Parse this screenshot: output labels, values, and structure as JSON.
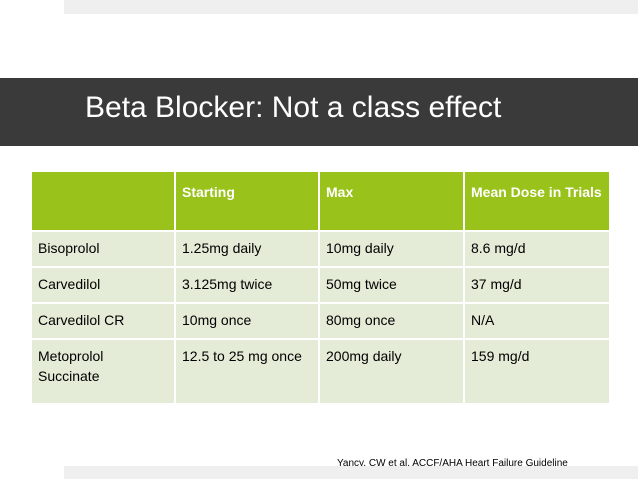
{
  "slide": {
    "title": "Beta Blocker: Not a class effect",
    "citation": "Yancy, CW et al. ACCF/AHA Heart Failure Guideline",
    "colors": {
      "title_bar": "#3a3a3a",
      "header_green": "#99c21a",
      "row_bg": "#e4ebd6"
    }
  },
  "table": {
    "headers": [
      "",
      "Starting",
      "Max",
      "Mean Dose in Trials"
    ],
    "rows": [
      {
        "drug": "Bisoprolol",
        "starting": "1.25mg daily",
        "max": "10mg daily",
        "mean": "8.6 mg/d"
      },
      {
        "drug": "Carvedilol",
        "starting": "3.125mg twice",
        "max": "50mg twice",
        "mean": "37 mg/d"
      },
      {
        "drug": "Carvedilol CR",
        "starting": "10mg once",
        "max": "80mg once",
        "mean": "N/A"
      },
      {
        "drug": "Metoprolol Succinate",
        "starting": "12.5 to 25 mg once",
        "max": "200mg daily",
        "mean": "159 mg/d"
      }
    ]
  }
}
